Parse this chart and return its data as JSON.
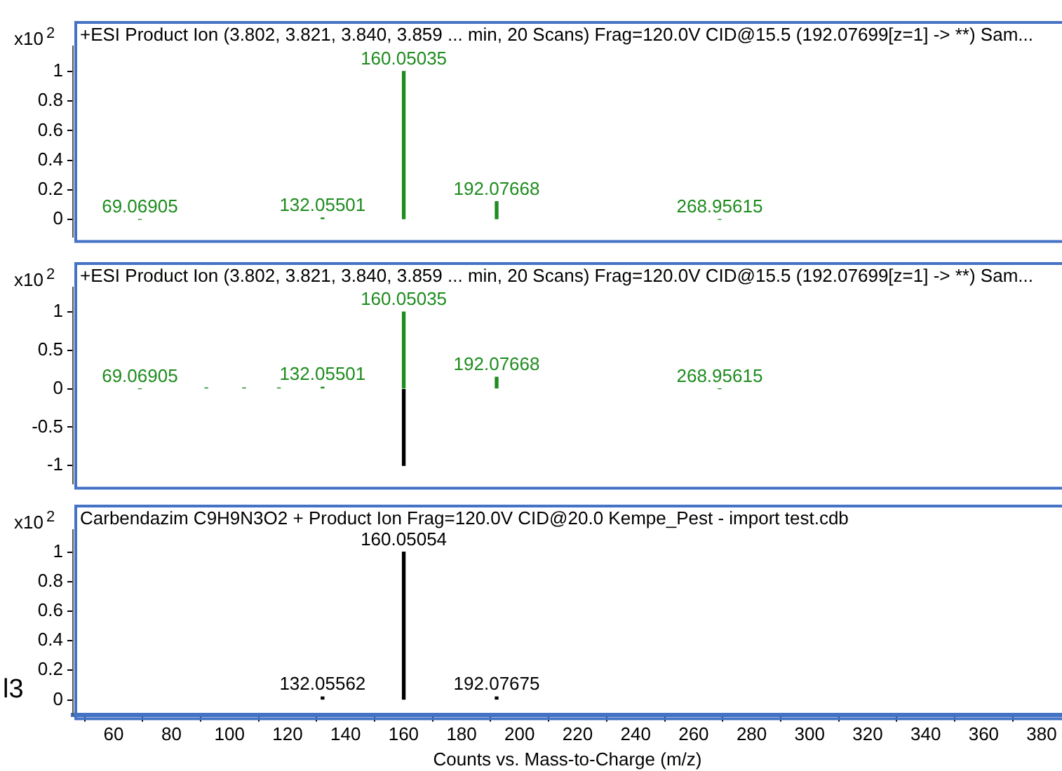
{
  "chart_data": [
    {
      "type": "bar",
      "title": "+ESI Product Ion (3.802, 3.821, 3.840, 3.859 ... min, 20 Scans) Frag=120.0V CID@15.5 (192.07699[z=1] -> **) Sam...",
      "ylabel": "x10$^{2}$",
      "series": [
        {
          "color": "#1e8c1e",
          "x": [
            69.06905,
            132.05501,
            160.05035,
            192.07668,
            268.95615
          ],
          "values": [
            0,
            0.01,
            1,
            0.12,
            0
          ]
        }
      ],
      "annotations": [
        {
          "text": "69.06905",
          "x": 69.06905,
          "y": 0
        },
        {
          "text": "132.05501",
          "x": 132.05501,
          "y": 0.01
        },
        {
          "text": "160.05035",
          "x": 160.05035,
          "y": 1
        },
        {
          "text": "192.07668",
          "x": 192.07668,
          "y": 0.12
        },
        {
          "text": "268.95615",
          "x": 268.95615,
          "y": 0
        }
      ],
      "xlim": [
        46,
        387
      ],
      "xticks": [
        60,
        80,
        100,
        120,
        140,
        160,
        180,
        200,
        220,
        240,
        260,
        280,
        300,
        320,
        340,
        360,
        380
      ],
      "ylim": [
        -0.12,
        1.17
      ],
      "yticks": [
        0,
        0.2,
        0.4,
        0.6,
        0.8,
        1
      ],
      "tick_labels": "y",
      "legend": false
    },
    {
      "type": "bar",
      "title": "+ESI Product Ion (3.802, 3.821, 3.840, 3.859 ... min, 20 Scans) Frag=120.0V CID@15.5 (192.07699[z=1] -> **) Sam...",
      "ylabel": "x10$^{2}$",
      "series": [
        {
          "color": "#1e8c1e",
          "x": [
            69.06905,
            92,
            105,
            117,
            132.05501,
            160.05035,
            192.07668,
            268.95615
          ],
          "values": [
            0,
            0.01,
            0.01,
            0.01,
            0.02,
            1,
            0.15,
            0
          ]
        },
        {
          "color": "#000000",
          "x": [
            160.05054
          ],
          "values": [
            -1
          ]
        }
      ],
      "annotations": [
        {
          "text": "69.06905",
          "x": 69.06905,
          "y": 0
        },
        {
          "text": "132.05501",
          "x": 132.05501,
          "y": 0.02
        },
        {
          "text": "160.05035",
          "x": 160.05035,
          "y": 1
        },
        {
          "text": "192.07668",
          "x": 192.07668,
          "y": 0.15
        },
        {
          "text": "268.95615",
          "x": 268.95615,
          "y": 0
        }
      ],
      "xlim": [
        46,
        387
      ],
      "xticks": [
        60,
        80,
        100,
        120,
        140,
        160,
        180,
        200,
        220,
        240,
        260,
        280,
        300,
        320,
        340,
        360,
        380
      ],
      "ylim": [
        -1.24,
        1.32
      ],
      "yticks": [
        -1,
        -0.5,
        0,
        0.5,
        1
      ],
      "tick_labels": "y",
      "legend": false
    },
    {
      "type": "bar",
      "title": "Carbendazim C9H9N3O2 + Product Ion Frag=120.0V CID@20.0 Kempe_Pest - import test.cdb",
      "ylabel": "x10$^{2}$",
      "xlabel": "Counts vs. Mass-to-Charge (m/z)",
      "series": [
        {
          "color": "#000000",
          "x": [
            132.05562,
            160.05054,
            192.07675
          ],
          "values": [
            0.02,
            1,
            0.02
          ]
        }
      ],
      "annotations": [
        {
          "text": "132.05562",
          "x": 132.05562,
          "y": 0.02
        },
        {
          "text": "160.05054",
          "x": 160.05054,
          "y": 1
        },
        {
          "text": "192.07675",
          "x": 192.07675,
          "y": 0.02
        },
        "l3"
      ],
      "xlim": [
        46,
        387
      ],
      "xticks": [
        60,
        80,
        100,
        120,
        140,
        160,
        180,
        200,
        220,
        240,
        260,
        280,
        300,
        320,
        340,
        360,
        380
      ],
      "ylim": [
        -0.1,
        1.15
      ],
      "yticks": [
        0,
        0.2,
        0.4,
        0.6,
        0.8,
        1
      ],
      "legend": false
    }
  ]
}
